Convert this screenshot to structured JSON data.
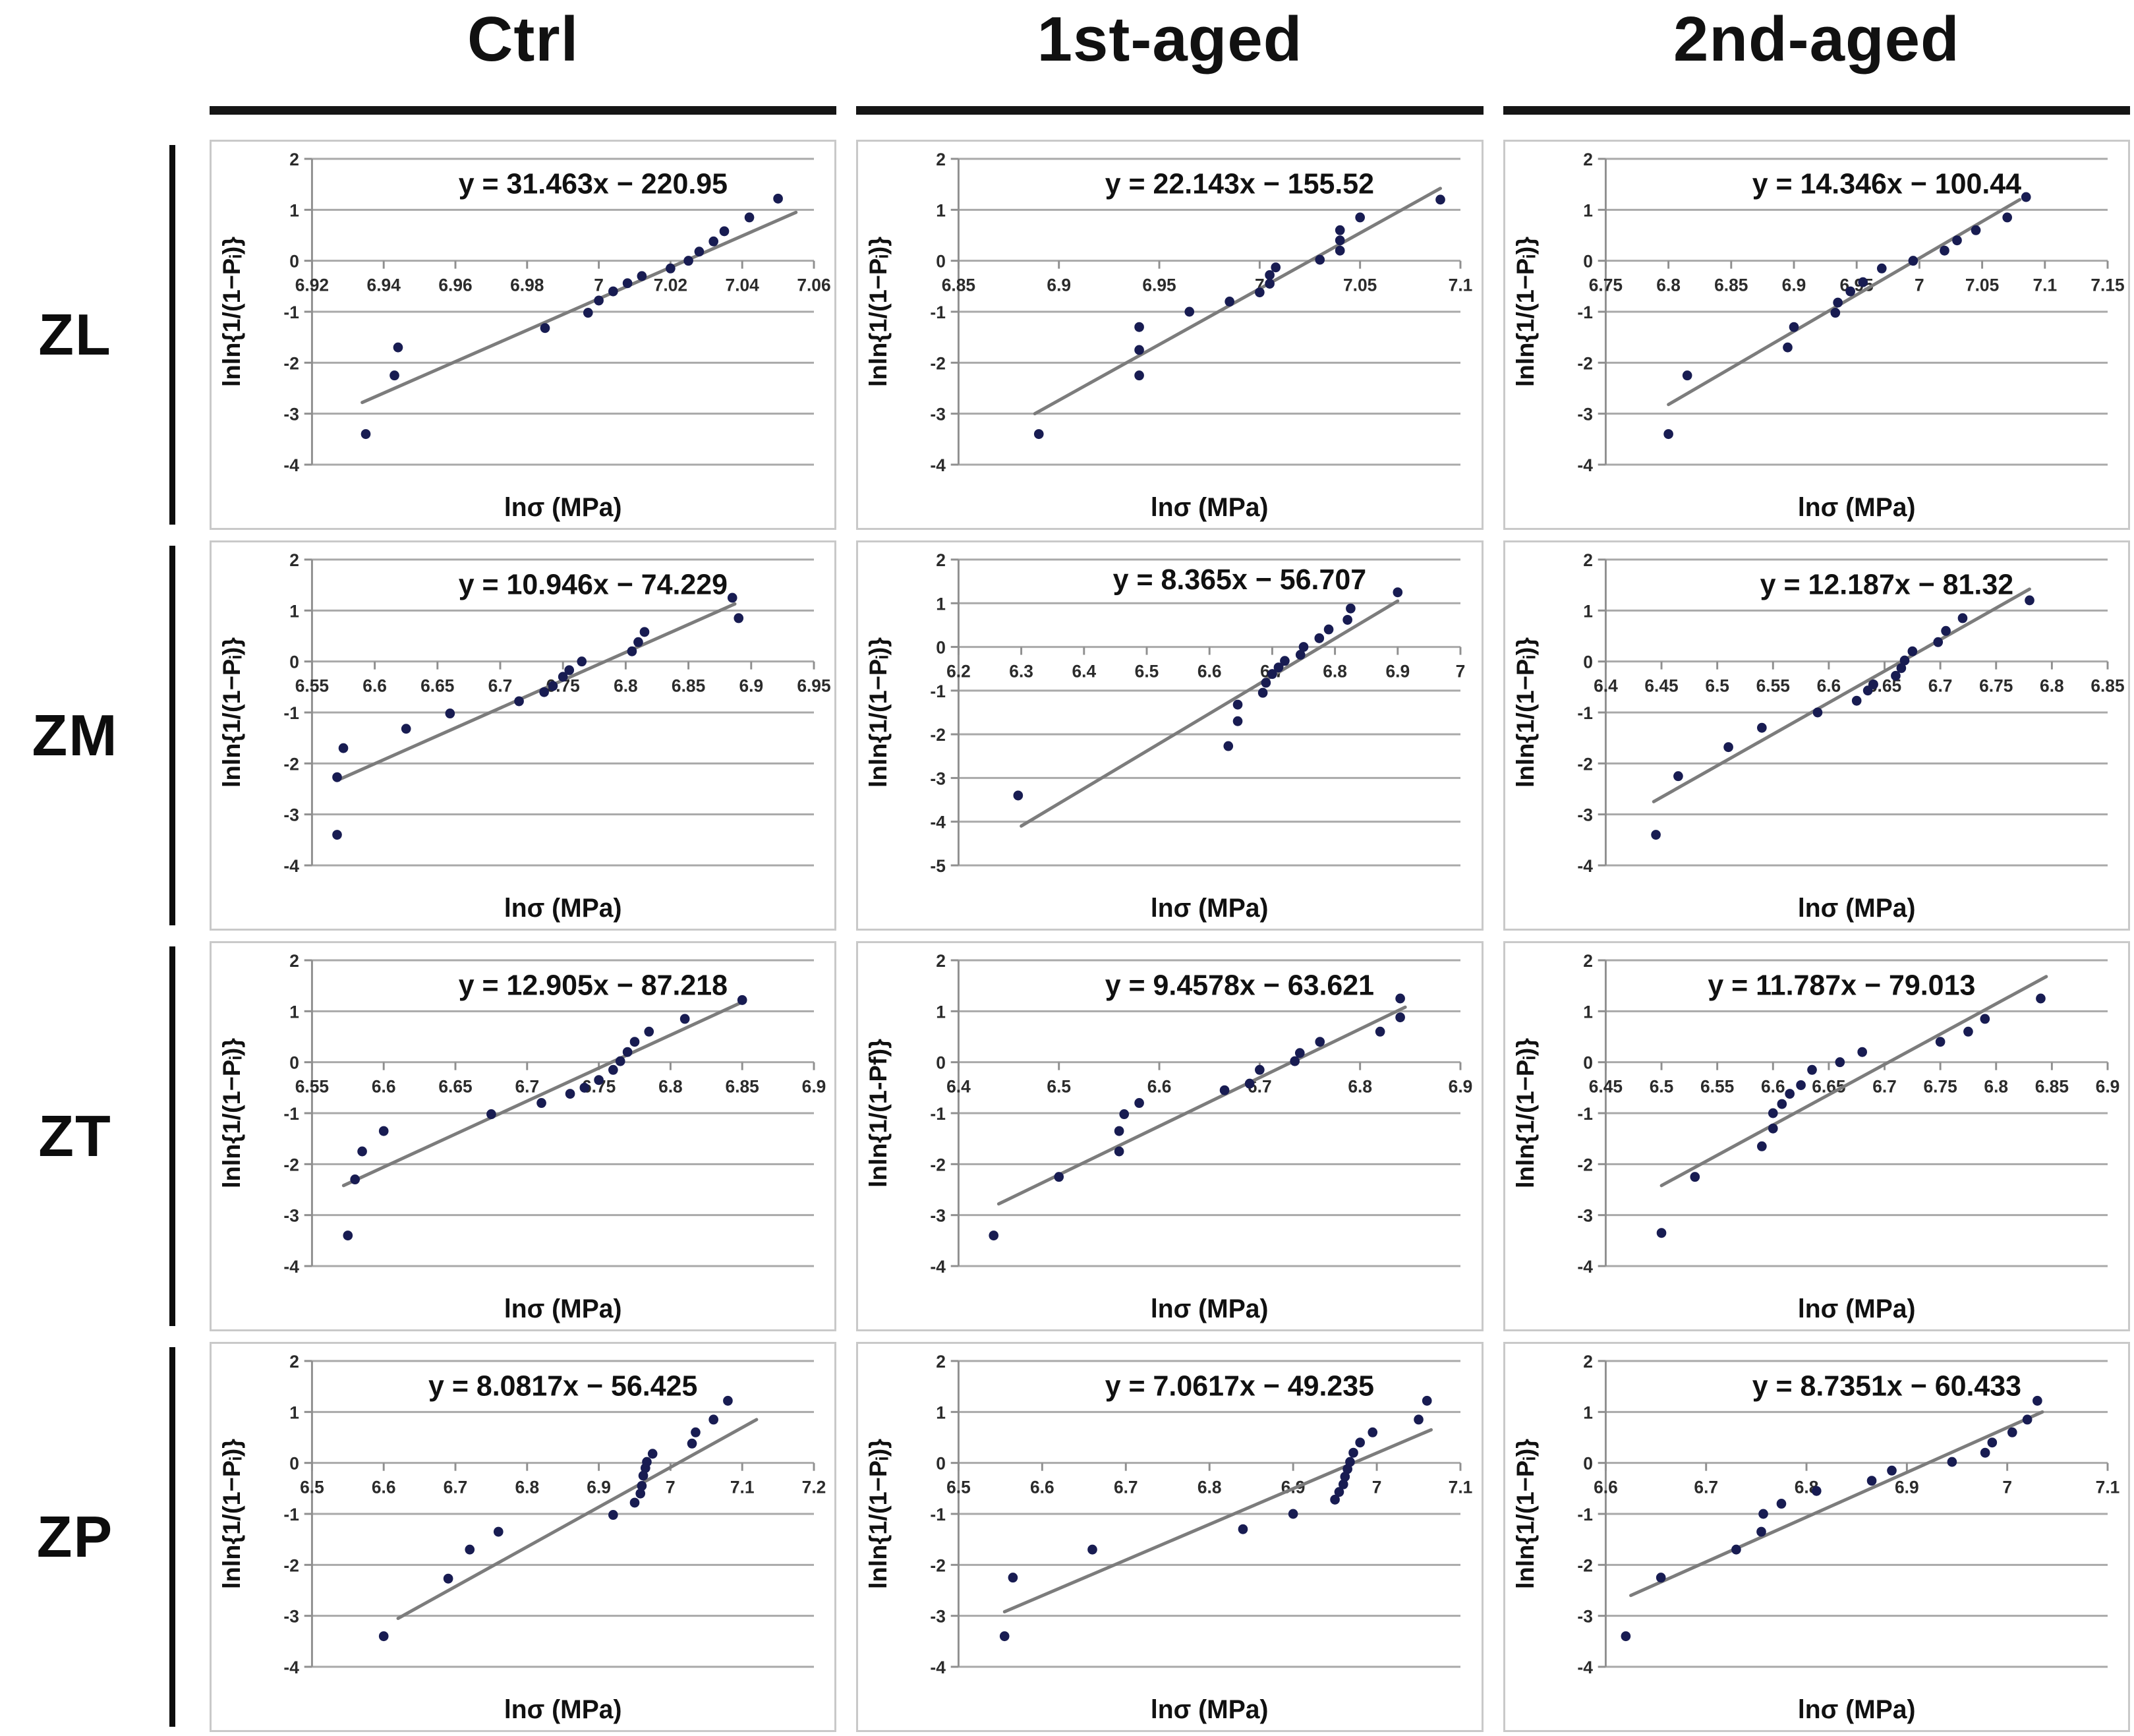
{
  "grid": {
    "col_headers": [
      "Ctrl",
      "1st-aged",
      "2nd-aged"
    ],
    "row_labels": [
      "ZL",
      "ZM",
      "ZT",
      "ZP"
    ]
  },
  "colors": {
    "point": "#181c52",
    "fit_line": "#7c7c7c",
    "gridline": "#a9a9a9",
    "axis": "#8f8f8f",
    "text": "#1a1a1a",
    "header_bar": "#151515"
  },
  "chart_data": [
    {
      "row": "ZL",
      "col": "Ctrl",
      "type": "scatter",
      "equation": "y = 31.463x − 220.95",
      "xlabel": "lnσ (MPa)",
      "ylabel": "lnln{1/(1−Pᵢ)}",
      "xlim": [
        6.92,
        7.06
      ],
      "ylim": [
        -4,
        2
      ],
      "xticks": [
        "6.92",
        "6.94",
        "6.96",
        "6.98",
        "7",
        "7.02",
        "7.04",
        "7.06"
      ],
      "yticks": [
        2,
        1,
        0,
        -1,
        -2,
        -3,
        -4
      ],
      "points": [
        [
          6.935,
          -3.4
        ],
        [
          6.943,
          -2.25
        ],
        [
          6.944,
          -1.7
        ],
        [
          6.985,
          -1.32
        ],
        [
          6.997,
          -1.02
        ],
        [
          7.0,
          -0.78
        ],
        [
          7.004,
          -0.6
        ],
        [
          7.008,
          -0.44
        ],
        [
          7.012,
          -0.3
        ],
        [
          7.02,
          -0.15
        ],
        [
          7.025,
          0.0
        ],
        [
          7.028,
          0.18
        ],
        [
          7.032,
          0.38
        ],
        [
          7.035,
          0.58
        ],
        [
          7.042,
          0.85
        ],
        [
          7.05,
          1.22
        ]
      ],
      "fit_line": [
        [
          6.934,
          -2.78
        ],
        [
          7.055,
          0.95
        ]
      ]
    },
    {
      "row": "ZL",
      "col": "1st-aged",
      "type": "scatter",
      "equation": "y = 22.143x − 155.52",
      "xlabel": "lnσ (MPa)",
      "ylabel": "lnln{1/(1−Pᵢ)}",
      "xlim": [
        6.85,
        7.1
      ],
      "ylim": [
        -4,
        2
      ],
      "xticks": [
        "6.85",
        "6.9",
        "6.95",
        "7",
        "7.05",
        "7.1"
      ],
      "yticks": [
        2,
        1,
        0,
        -1,
        -2,
        -3,
        -4
      ],
      "points": [
        [
          6.89,
          -3.4
        ],
        [
          6.94,
          -2.25
        ],
        [
          6.94,
          -1.75
        ],
        [
          6.94,
          -1.3
        ],
        [
          6.965,
          -1.0
        ],
        [
          6.985,
          -0.8
        ],
        [
          7.0,
          -0.62
        ],
        [
          7.005,
          -0.45
        ],
        [
          7.005,
          -0.28
        ],
        [
          7.008,
          -0.13
        ],
        [
          7.03,
          0.02
        ],
        [
          7.04,
          0.2
        ],
        [
          7.04,
          0.4
        ],
        [
          7.04,
          0.6
        ],
        [
          7.05,
          0.85
        ],
        [
          7.09,
          1.2
        ]
      ],
      "fit_line": [
        [
          6.888,
          -3.0
        ],
        [
          7.09,
          1.42
        ]
      ]
    },
    {
      "row": "ZL",
      "col": "2nd-aged",
      "type": "scatter",
      "equation": "y = 14.346x − 100.44",
      "xlabel": "lnσ (MPa)",
      "ylabel": "lnln{1/(1−Pᵢ)}",
      "xlim": [
        6.75,
        7.15
      ],
      "ylim": [
        -4,
        2
      ],
      "xticks": [
        "6.75",
        "6.8",
        "6.85",
        "6.9",
        "6.95",
        "7",
        "7.05",
        "7.1",
        "7.15"
      ],
      "yticks": [
        2,
        1,
        0,
        -1,
        -2,
        -3,
        -4
      ],
      "points": [
        [
          6.8,
          -3.4
        ],
        [
          6.815,
          -2.25
        ],
        [
          6.895,
          -1.7
        ],
        [
          6.9,
          -1.3
        ],
        [
          6.933,
          -1.02
        ],
        [
          6.935,
          -0.82
        ],
        [
          6.945,
          -0.6
        ],
        [
          6.955,
          -0.42
        ],
        [
          6.97,
          -0.15
        ],
        [
          6.995,
          0.0
        ],
        [
          7.02,
          0.2
        ],
        [
          7.03,
          0.4
        ],
        [
          7.045,
          0.6
        ],
        [
          7.07,
          0.85
        ],
        [
          7.085,
          1.25
        ]
      ],
      "fit_line": [
        [
          6.8,
          -2.82
        ],
        [
          7.08,
          1.2
        ]
      ]
    },
    {
      "row": "ZM",
      "col": "Ctrl",
      "type": "scatter",
      "equation": "y = 10.946x − 74.229",
      "xlabel": "lnσ (MPa)",
      "ylabel": "lnln{1/(1−Pᵢ)}",
      "xlim": [
        6.55,
        6.95
      ],
      "ylim": [
        -4,
        2
      ],
      "xticks": [
        "6.55",
        "6.6",
        "6.65",
        "6.7",
        "6.75",
        "6.8",
        "6.85",
        "6.9",
        "6.95"
      ],
      "yticks": [
        2,
        1,
        0,
        -1,
        -2,
        -3,
        -4
      ],
      "points": [
        [
          6.57,
          -3.4
        ],
        [
          6.57,
          -2.27
        ],
        [
          6.575,
          -1.7
        ],
        [
          6.625,
          -1.32
        ],
        [
          6.66,
          -1.02
        ],
        [
          6.715,
          -0.78
        ],
        [
          6.735,
          -0.6
        ],
        [
          6.742,
          -0.48
        ],
        [
          6.75,
          -0.3
        ],
        [
          6.755,
          -0.17
        ],
        [
          6.765,
          0.0
        ],
        [
          6.805,
          0.2
        ],
        [
          6.81,
          0.38
        ],
        [
          6.815,
          0.58
        ],
        [
          6.885,
          1.25
        ],
        [
          6.89,
          0.85
        ]
      ],
      "fit_line": [
        [
          6.573,
          -2.3
        ],
        [
          6.887,
          1.13
        ]
      ]
    },
    {
      "row": "ZM",
      "col": "1st-aged",
      "type": "scatter",
      "equation": "y = 8.365x − 56.707",
      "xlabel": "lnσ (MPa)",
      "ylabel": "lnln{1/(1−Pᵢ)}",
      "xlim": [
        6.2,
        7.0
      ],
      "ylim": [
        -5,
        2
      ],
      "xticks": [
        "6.2",
        "6.3",
        "6.4",
        "6.5",
        "6.6",
        "6.7",
        "6.8",
        "6.9",
        "7"
      ],
      "yticks": [
        2,
        1,
        0,
        -1,
        -2,
        -3,
        -4,
        -5
      ],
      "points": [
        [
          6.295,
          -3.4
        ],
        [
          6.63,
          -2.27
        ],
        [
          6.645,
          -1.7
        ],
        [
          6.645,
          -1.32
        ],
        [
          6.685,
          -1.05
        ],
        [
          6.69,
          -0.82
        ],
        [
          6.7,
          -0.62
        ],
        [
          6.71,
          -0.47
        ],
        [
          6.72,
          -0.32
        ],
        [
          6.745,
          -0.18
        ],
        [
          6.75,
          0.0
        ],
        [
          6.775,
          0.2
        ],
        [
          6.79,
          0.4
        ],
        [
          6.82,
          0.62
        ],
        [
          6.825,
          0.88
        ],
        [
          6.9,
          1.25
        ]
      ],
      "fit_line": [
        [
          6.3,
          -4.1
        ],
        [
          6.9,
          1.05
        ]
      ]
    },
    {
      "row": "ZM",
      "col": "2nd-aged",
      "type": "scatter",
      "equation": "y = 12.187x − 81.32",
      "xlabel": "lnσ (MPa)",
      "ylabel": "lnln{1/(1−Pᵢ)}",
      "xlim": [
        6.4,
        6.85
      ],
      "ylim": [
        -4,
        2
      ],
      "xticks": [
        "6.4",
        "6.45",
        "6.5",
        "6.55",
        "6.6",
        "6.65",
        "6.7",
        "6.75",
        "6.8",
        "6.85"
      ],
      "yticks": [
        2,
        1,
        0,
        -1,
        -2,
        -3,
        -4
      ],
      "points": [
        [
          6.445,
          -3.4
        ],
        [
          6.465,
          -2.25
        ],
        [
          6.51,
          -1.68
        ],
        [
          6.54,
          -1.3
        ],
        [
          6.59,
          -1.0
        ],
        [
          6.625,
          -0.77
        ],
        [
          6.635,
          -0.57
        ],
        [
          6.64,
          -0.45
        ],
        [
          6.66,
          -0.28
        ],
        [
          6.665,
          -0.13
        ],
        [
          6.668,
          0.02
        ],
        [
          6.675,
          0.2
        ],
        [
          6.698,
          0.38
        ],
        [
          6.705,
          0.6
        ],
        [
          6.72,
          0.85
        ],
        [
          6.78,
          1.2
        ]
      ],
      "fit_line": [
        [
          6.443,
          -2.75
        ],
        [
          6.78,
          1.42
        ]
      ]
    },
    {
      "row": "ZT",
      "col": "Ctrl",
      "type": "scatter",
      "equation": "y = 12.905x − 87.218",
      "xlabel": "lnσ (MPa)",
      "ylabel": "lnln{1/(1−Pᵢ)}",
      "xlim": [
        6.55,
        6.9
      ],
      "ylim": [
        -4,
        2
      ],
      "xticks": [
        "6.55",
        "6.6",
        "6.65",
        "6.7",
        "6.75",
        "6.8",
        "6.85",
        "6.9"
      ],
      "yticks": [
        2,
        1,
        0,
        -1,
        -2,
        -3,
        -4
      ],
      "points": [
        [
          6.575,
          -3.4
        ],
        [
          6.58,
          -2.3
        ],
        [
          6.585,
          -1.75
        ],
        [
          6.6,
          -1.35
        ],
        [
          6.675,
          -1.02
        ],
        [
          6.71,
          -0.8
        ],
        [
          6.73,
          -0.62
        ],
        [
          6.74,
          -0.5
        ],
        [
          6.75,
          -0.35
        ],
        [
          6.76,
          -0.15
        ],
        [
          6.765,
          0.02
        ],
        [
          6.77,
          0.2
        ],
        [
          6.775,
          0.4
        ],
        [
          6.785,
          0.6
        ],
        [
          6.81,
          0.85
        ],
        [
          6.85,
          1.22
        ]
      ],
      "fit_line": [
        [
          6.572,
          -2.42
        ],
        [
          6.85,
          1.18
        ]
      ]
    },
    {
      "row": "ZT",
      "col": "1st-aged",
      "type": "scatter",
      "equation": "y = 9.4578x − 63.621",
      "xlabel": "lnσ (MPa)",
      "ylabel": "lnln{1/(1-Pf)}",
      "xlim": [
        6.4,
        6.9
      ],
      "ylim": [
        -4,
        2
      ],
      "xticks": [
        "6.4",
        "6.5",
        "6.6",
        "6.7",
        "6.8",
        "6.9"
      ],
      "yticks": [
        2,
        1,
        0,
        -1,
        -2,
        -3,
        -4
      ],
      "points": [
        [
          6.435,
          -3.4
        ],
        [
          6.5,
          -2.25
        ],
        [
          6.56,
          -1.75
        ],
        [
          6.56,
          -1.35
        ],
        [
          6.565,
          -1.02
        ],
        [
          6.58,
          -0.8
        ],
        [
          6.665,
          -0.55
        ],
        [
          6.69,
          -0.42
        ],
        [
          6.7,
          -0.15
        ],
        [
          6.735,
          0.02
        ],
        [
          6.74,
          0.18
        ],
        [
          6.76,
          0.4
        ],
        [
          6.82,
          0.6
        ],
        [
          6.84,
          0.88
        ],
        [
          6.84,
          1.25
        ]
      ],
      "fit_line": [
        [
          6.44,
          -2.78
        ],
        [
          6.845,
          1.08
        ]
      ]
    },
    {
      "row": "ZT",
      "col": "2nd-aged",
      "type": "scatter",
      "equation": "y = 11.787x − 79.013",
      "xlabel": "lnσ (MPa)",
      "ylabel": "lnln{1/(1−Pᵢ)}",
      "xlim": [
        6.45,
        6.9
      ],
      "ylim": [
        -4,
        2
      ],
      "xticks": [
        "6.45",
        "6.5",
        "6.55",
        "6.6",
        "6.65",
        "6.7",
        "6.75",
        "6.8",
        "6.85",
        "6.9"
      ],
      "yticks": [
        2,
        1,
        0,
        -1,
        -2,
        -3,
        -4
      ],
      "points": [
        [
          6.5,
          -3.35
        ],
        [
          6.53,
          -2.25
        ],
        [
          6.59,
          -1.65
        ],
        [
          6.6,
          -1.3
        ],
        [
          6.6,
          -1.0
        ],
        [
          6.608,
          -0.82
        ],
        [
          6.615,
          -0.62
        ],
        [
          6.625,
          -0.45
        ],
        [
          6.635,
          -0.15
        ],
        [
          6.66,
          0.0
        ],
        [
          6.68,
          0.2
        ],
        [
          6.75,
          0.4
        ],
        [
          6.775,
          0.6
        ],
        [
          6.79,
          0.85
        ],
        [
          6.84,
          1.25
        ]
      ],
      "fit_line": [
        [
          6.5,
          -2.42
        ],
        [
          6.845,
          1.68
        ]
      ],
      "eq_x": 0.47
    },
    {
      "row": "ZP",
      "col": "Ctrl",
      "type": "scatter",
      "equation": "y = 8.0817x − 56.425",
      "xlabel": "lnσ (MPa)",
      "ylabel": "lnln{1/(1−Pᵢ)}",
      "xlim": [
        6.5,
        7.2
      ],
      "ylim": [
        -4,
        2
      ],
      "xticks": [
        "6.5",
        "6.6",
        "6.7",
        "6.8",
        "6.9",
        "7",
        "7.1",
        "7.2"
      ],
      "yticks": [
        2,
        1,
        0,
        -1,
        -2,
        -3,
        -4
      ],
      "points": [
        [
          6.6,
          -3.4
        ],
        [
          6.69,
          -2.27
        ],
        [
          6.72,
          -1.7
        ],
        [
          6.76,
          -1.35
        ],
        [
          6.92,
          -1.02
        ],
        [
          6.95,
          -0.78
        ],
        [
          6.958,
          -0.6
        ],
        [
          6.96,
          -0.45
        ],
        [
          6.962,
          -0.25
        ],
        [
          6.965,
          -0.1
        ],
        [
          6.967,
          0.02
        ],
        [
          6.975,
          0.18
        ],
        [
          7.03,
          0.38
        ],
        [
          7.035,
          0.6
        ],
        [
          7.06,
          0.85
        ],
        [
          7.08,
          1.22
        ]
      ],
      "fit_line": [
        [
          6.62,
          -3.05
        ],
        [
          7.12,
          0.85
        ]
      ],
      "eq_x": 0.5
    },
    {
      "row": "ZP",
      "col": "1st-aged",
      "type": "scatter",
      "equation": "y = 7.0617x − 49.235",
      "xlabel": "lnσ (MPa)",
      "ylabel": "lnln{1/(1−Pᵢ)}",
      "xlim": [
        6.5,
        7.1
      ],
      "ylim": [
        -4,
        2
      ],
      "xticks": [
        "6.5",
        "6.6",
        "6.7",
        "6.8",
        "6.9",
        "7",
        "7.1"
      ],
      "yticks": [
        2,
        1,
        0,
        -1,
        -2,
        -3,
        -4
      ],
      "points": [
        [
          6.555,
          -3.4
        ],
        [
          6.565,
          -2.25
        ],
        [
          6.66,
          -1.7
        ],
        [
          6.84,
          -1.3
        ],
        [
          6.9,
          -1.0
        ],
        [
          6.95,
          -0.72
        ],
        [
          6.955,
          -0.57
        ],
        [
          6.96,
          -0.42
        ],
        [
          6.962,
          -0.27
        ],
        [
          6.965,
          -0.12
        ],
        [
          6.968,
          0.02
        ],
        [
          6.972,
          0.2
        ],
        [
          6.98,
          0.4
        ],
        [
          6.995,
          0.6
        ],
        [
          7.05,
          0.85
        ],
        [
          7.06,
          1.22
        ]
      ],
      "fit_line": [
        [
          6.555,
          -2.92
        ],
        [
          7.065,
          0.65
        ]
      ]
    },
    {
      "row": "ZP",
      "col": "2nd-aged",
      "type": "scatter",
      "equation": "y = 8.7351x − 60.433",
      "xlabel": "lnσ (MPa)",
      "ylabel": "lnln{1/(1−Pᵢ)}",
      "xlim": [
        6.6,
        7.1
      ],
      "ylim": [
        -4,
        2
      ],
      "xticks": [
        "6.6",
        "6.7",
        "6.8",
        "6.9",
        "7",
        "7.1"
      ],
      "yticks": [
        2,
        1,
        0,
        -1,
        -2,
        -3,
        -4
      ],
      "points": [
        [
          6.62,
          -3.4
        ],
        [
          6.655,
          -2.25
        ],
        [
          6.73,
          -1.7
        ],
        [
          6.755,
          -1.35
        ],
        [
          6.757,
          -1.0
        ],
        [
          6.775,
          -0.8
        ],
        [
          6.81,
          -0.55
        ],
        [
          6.865,
          -0.35
        ],
        [
          6.885,
          -0.15
        ],
        [
          6.945,
          0.02
        ],
        [
          6.978,
          0.2
        ],
        [
          6.985,
          0.4
        ],
        [
          7.005,
          0.6
        ],
        [
          7.02,
          0.85
        ],
        [
          7.03,
          1.22
        ]
      ],
      "fit_line": [
        [
          6.625,
          -2.6
        ],
        [
          7.035,
          1.0
        ]
      ]
    }
  ]
}
